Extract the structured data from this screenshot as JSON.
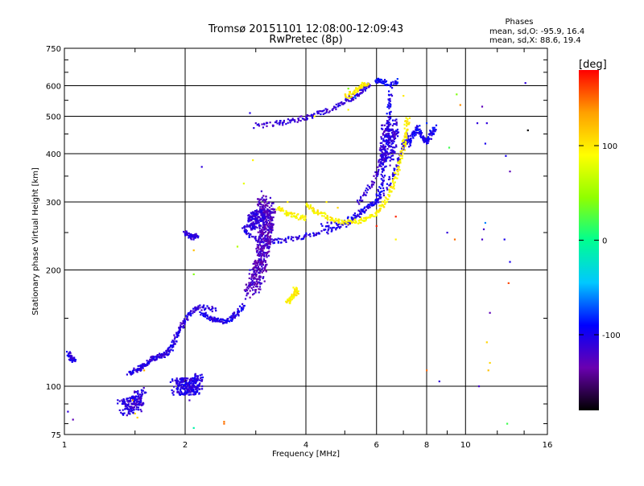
{
  "chart_data": {
    "type": "scatter",
    "title": "Tromsø 20151101 12:08:00-12:09:43",
    "subtitle": "RwPretec (8p)",
    "xlabel": "Frequency [MHz]",
    "ylabel": "Stationary phase Virtual Height [km]",
    "x_scale": "log",
    "y_scale": "log",
    "xlim": [
      1,
      16
    ],
    "ylim": [
      75,
      750
    ],
    "x_ticks": [
      1,
      2,
      4,
      6,
      8,
      10,
      16
    ],
    "y_ticks": [
      75,
      100,
      200,
      300,
      400,
      500,
      600,
      750
    ],
    "grid": true,
    "stats": {
      "heading": "Phases",
      "line_o": "mean, sd,O: -95.9, 16.4",
      "line_x": "mean, sd,X:  88.6, 19.4"
    },
    "colorbar": {
      "label": "[deg]",
      "range": [
        -180,
        180
      ],
      "ticks": [
        100,
        0,
        -100
      ],
      "stops": [
        "#000000",
        "#6a00b0",
        "#0000ff",
        "#00c8ff",
        "#00ff90",
        "#90ff00",
        "#ffff00",
        "#ffa000",
        "#ff0000"
      ]
    },
    "series": [
      {
        "kind": "trace",
        "phase": -105,
        "points": [
          [
            1.02,
            122
          ],
          [
            1.04,
            118
          ],
          [
            1.06,
            116
          ]
        ]
      },
      {
        "kind": "trace",
        "phase": -108,
        "points": [
          [
            1.45,
            108
          ],
          [
            1.5,
            110
          ],
          [
            1.55,
            112
          ],
          [
            1.6,
            114
          ],
          [
            1.65,
            118
          ],
          [
            1.7,
            119
          ],
          [
            1.75,
            120
          ],
          [
            1.8,
            122
          ],
          [
            1.85,
            126
          ],
          [
            1.9,
            135
          ],
          [
            1.95,
            142
          ],
          [
            2.0,
            148
          ],
          [
            2.1,
            158
          ],
          [
            2.2,
            160
          ],
          [
            2.4,
            158
          ]
        ]
      },
      {
        "kind": "trace",
        "phase": -102,
        "points": [
          [
            2.2,
            155
          ],
          [
            2.3,
            150
          ],
          [
            2.4,
            148
          ],
          [
            2.5,
            147
          ],
          [
            2.6,
            150
          ],
          [
            2.7,
            155
          ],
          [
            2.8,
            162
          ]
        ]
      },
      {
        "kind": "trace",
        "phase": -108,
        "points": [
          [
            2.0,
            250
          ],
          [
            2.05,
            245
          ],
          [
            2.1,
            243
          ],
          [
            2.15,
            246
          ]
        ]
      },
      {
        "kind": "trace",
        "phase": -105,
        "points": [
          [
            2.8,
            255
          ],
          [
            3.0,
            240
          ],
          [
            3.3,
            237
          ],
          [
            3.6,
            240
          ],
          [
            4.0,
            245
          ],
          [
            4.5,
            252
          ],
          [
            5.0,
            262
          ],
          [
            5.5,
            280
          ],
          [
            6.0,
            300
          ],
          [
            6.5,
            340
          ],
          [
            6.8,
            380
          ],
          [
            7.0,
            420
          ],
          [
            7.2,
            450
          ]
        ]
      },
      {
        "kind": "trace",
        "phase": -100,
        "points": [
          [
            4.4,
            260
          ],
          [
            5.0,
            268
          ],
          [
            5.6,
            285
          ],
          [
            6.0,
            305
          ],
          [
            6.2,
            340
          ],
          [
            6.3,
            390
          ],
          [
            6.4,
            450
          ],
          [
            6.45,
            520
          ],
          [
            6.5,
            580
          ]
        ]
      },
      {
        "kind": "trace",
        "phase": -112,
        "points": [
          [
            3.0,
            470
          ],
          [
            3.4,
            480
          ],
          [
            3.8,
            490
          ],
          [
            4.2,
            505
          ],
          [
            4.6,
            520
          ],
          [
            5.0,
            545
          ],
          [
            5.3,
            565
          ],
          [
            5.6,
            590
          ],
          [
            5.8,
            610
          ]
        ]
      },
      {
        "kind": "trace",
        "phase": -95,
        "points": [
          [
            6.0,
            620
          ],
          [
            6.2,
            615
          ],
          [
            6.5,
            600
          ],
          [
            6.8,
            620
          ]
        ]
      },
      {
        "kind": "trace",
        "phase": -115,
        "points": [
          [
            5.4,
            300
          ],
          [
            5.8,
            330
          ],
          [
            6.1,
            370
          ],
          [
            6.2,
            420
          ],
          [
            6.25,
            480
          ]
        ]
      },
      {
        "kind": "trace",
        "phase": -98,
        "points": [
          [
            7.2,
            420
          ],
          [
            7.4,
            450
          ],
          [
            7.6,
            470
          ],
          [
            7.8,
            440
          ],
          [
            8.0,
            430
          ],
          [
            8.2,
            450
          ],
          [
            8.4,
            470
          ]
        ]
      },
      {
        "kind": "trace",
        "phase": 95,
        "points": [
          [
            4.0,
            295
          ],
          [
            4.2,
            285
          ],
          [
            4.5,
            275
          ],
          [
            4.8,
            268
          ],
          [
            5.2,
            265
          ],
          [
            5.6,
            270
          ],
          [
            6.0,
            280
          ],
          [
            6.3,
            300
          ],
          [
            6.6,
            330
          ],
          [
            6.8,
            370
          ],
          [
            7.0,
            420
          ],
          [
            7.1,
            460
          ],
          [
            7.2,
            500
          ]
        ]
      },
      {
        "kind": "trace",
        "phase": 92,
        "points": [
          [
            3.4,
            290
          ],
          [
            3.6,
            280
          ],
          [
            3.8,
            275
          ],
          [
            4.0,
            272
          ]
        ]
      },
      {
        "kind": "trace",
        "phase": 95,
        "points": [
          [
            5.0,
            560
          ],
          [
            5.3,
            580
          ],
          [
            5.5,
            600
          ],
          [
            5.7,
            610
          ]
        ]
      },
      {
        "kind": "trace",
        "phase": 98,
        "points": [
          [
            3.6,
            165
          ],
          [
            3.7,
            170
          ],
          [
            3.8,
            175
          ],
          [
            3.75,
            180
          ]
        ]
      },
      {
        "kind": "cloud",
        "phase": -125,
        "points": [
          [
            2.9,
            175
          ],
          [
            3.05,
            195
          ],
          [
            3.1,
            215
          ],
          [
            3.15,
            240
          ],
          [
            3.2,
            260
          ],
          [
            3.25,
            285
          ],
          [
            3.1,
            300
          ]
        ]
      },
      {
        "kind": "cloud",
        "phase": -110,
        "points": [
          [
            2.9,
            265
          ],
          [
            3.0,
            270
          ],
          [
            3.1,
            275
          ]
        ]
      },
      {
        "kind": "cloud",
        "phase": -110,
        "points": [
          [
            1.4,
            88
          ],
          [
            1.5,
            90
          ],
          [
            1.55,
            95
          ]
        ]
      },
      {
        "kind": "cloud",
        "phase": -105,
        "points": [
          [
            1.9,
            100
          ],
          [
            2.0,
            100
          ],
          [
            2.1,
            100
          ],
          [
            2.15,
            103
          ]
        ]
      },
      {
        "kind": "cloud",
        "phase": -110,
        "points": [
          [
            6.3,
            380
          ],
          [
            6.5,
            430
          ],
          [
            6.6,
            480
          ]
        ]
      }
    ],
    "scatter": [
      [
        1.02,
        86,
        -110
      ],
      [
        1.05,
        82,
        -130
      ],
      [
        1.48,
        92,
        140
      ],
      [
        1.5,
        85,
        105
      ],
      [
        1.52,
        83,
        110
      ],
      [
        1.58,
        110,
        130
      ],
      [
        2.5,
        80,
        150
      ],
      [
        2.5,
        81,
        145
      ],
      [
        2.1,
        78,
        -10
      ],
      [
        2.05,
        92,
        -120
      ],
      [
        2.2,
        370,
        -110
      ],
      [
        2.1,
        195,
        40
      ],
      [
        2.1,
        225,
        120
      ],
      [
        2.9,
        510,
        -105
      ],
      [
        2.95,
        385,
        95
      ],
      [
        2.8,
        335,
        80
      ],
      [
        2.7,
        230,
        60
      ],
      [
        3.0,
        480,
        -120
      ],
      [
        3.1,
        320,
        -115
      ],
      [
        3.5,
        480,
        -95
      ],
      [
        3.6,
        300,
        100
      ],
      [
        4.2,
        500,
        95
      ],
      [
        4.5,
        300,
        100
      ],
      [
        4.8,
        290,
        110
      ],
      [
        5.1,
        590,
        40
      ],
      [
        5.1,
        520,
        95
      ],
      [
        5.3,
        560,
        -60
      ],
      [
        6.7,
        275,
        170
      ],
      [
        6.7,
        240,
        95
      ],
      [
        7.0,
        565,
        100
      ],
      [
        8.0,
        110,
        150
      ],
      [
        8.6,
        103,
        -110
      ],
      [
        9.0,
        250,
        -110
      ],
      [
        9.1,
        415,
        20
      ],
      [
        9.5,
        570,
        40
      ],
      [
        9.7,
        535,
        140
      ],
      [
        10.8,
        100,
        -120
      ],
      [
        11.0,
        530,
        -130
      ],
      [
        11.4,
        110,
        120
      ],
      [
        11.2,
        425,
        -100
      ],
      [
        11.3,
        480,
        -110
      ],
      [
        12.7,
        80,
        20
      ],
      [
        12.8,
        185,
        160
      ],
      [
        12.9,
        210,
        -100
      ],
      [
        12.5,
        240,
        -100
      ],
      [
        12.9,
        360,
        -130
      ],
      [
        12.6,
        395,
        -100
      ],
      [
        11.5,
        155,
        -130
      ],
      [
        11.5,
        115,
        110
      ],
      [
        11.0,
        240,
        -120
      ],
      [
        11.1,
        255,
        -120
      ],
      [
        11.2,
        265,
        -60
      ],
      [
        10.7,
        480,
        -110
      ],
      [
        9.4,
        240,
        150
      ],
      [
        8.0,
        480,
        -80
      ],
      [
        14.1,
        610,
        -110
      ],
      [
        14.3,
        460,
        -200
      ],
      [
        11.3,
        130,
        110
      ],
      [
        6.0,
        260,
        170
      ],
      [
        3.5,
        475,
        -120
      ],
      [
        2.9,
        200,
        -100
      ]
    ]
  }
}
